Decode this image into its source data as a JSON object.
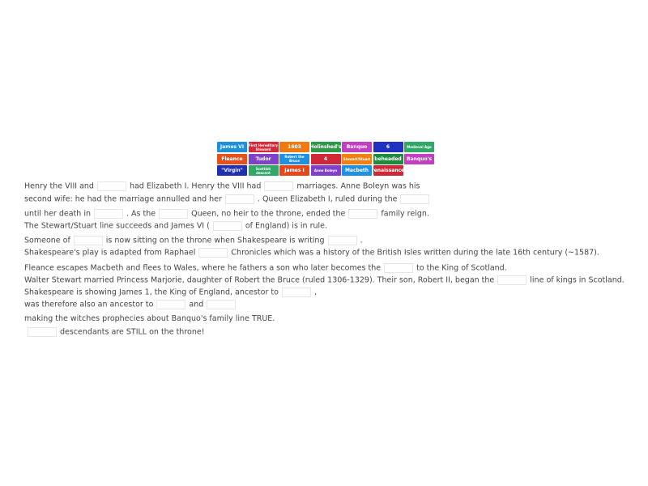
{
  "word_bank": [
    {
      "label": "James VI",
      "color": "#1e8fd8"
    },
    {
      "label": "First Hereditary Steward",
      "color": "#d42a3a",
      "small": true
    },
    {
      "label": "1603",
      "color": "#f07a10"
    },
    {
      "label": "Holinshed's",
      "color": "#2a9a48"
    },
    {
      "label": "Banquo",
      "color": "#c040c0"
    },
    {
      "label": "6",
      "color": "#2030c0"
    },
    {
      "label": "Medieval Age",
      "color": "#30a868",
      "small": true
    },
    {
      "label": "Fleance",
      "color": "#e8501a"
    },
    {
      "label": "Tudor",
      "color": "#8040c8"
    },
    {
      "label": "Robert the Bruce",
      "color": "#2090e0",
      "small": true
    },
    {
      "label": "4",
      "color": "#d02838"
    },
    {
      "label": "Stewart/Stuart",
      "color": "#f08010",
      "small": true
    },
    {
      "label": "beheaded",
      "color": "#208a40"
    },
    {
      "label": "Banquo's",
      "color": "#c040c0"
    },
    {
      "label": "\"Virgin\"",
      "color": "#2030b0"
    },
    {
      "label": "Scottish descent",
      "color": "#30a868",
      "small": true
    },
    {
      "label": "James I",
      "color": "#e84818"
    },
    {
      "label": "Anne Boleyn",
      "color": "#8040c8",
      "small": true
    },
    {
      "label": "Macbeth",
      "color": "#2090e0"
    },
    {
      "label": "renaissance",
      "color": "#d02838"
    }
  ],
  "lines": [
    [
      "Henry the VIII and",
      null,
      "had Elizabeth I. Henry the VIII had",
      null,
      "marriages. Anne Boleyn was his"
    ],
    [
      "second wife: he had the marriage annulled and her",
      null,
      ". Queen Elizabeth I, ruled during the",
      null
    ],
    [
      "until her death in",
      null,
      ". As the",
      null,
      "Queen, no heir to the throne, ended the",
      null,
      "family reign."
    ],
    [
      "The Stewart/Stuart line succeeds and James VI (",
      null,
      "of England) is in rule."
    ],
    [
      "Someone of",
      null,
      "is now sitting on the throne when Shakespeare is writing",
      null,
      "."
    ],
    [
      "Shakespeare's play is adapted from Raphael",
      null,
      "Chronicles which was a history of the British Isles written during the late 16th century (~1587)."
    ],
    [
      "Fleance escapes Macbeth and flees to Wales, where he fathers a son who later becomes the",
      null,
      "to the King of Scotland."
    ],
    [
      "Walter Stewart married Princess Marjorie, daughter of Robert the Bruce (ruled 1306-1329). Their son, Robert II, began the",
      null,
      "line of kings in Scotland."
    ],
    [
      "Shakespeare is showing James 1, the King of England, ancestor to",
      null,
      ","
    ],
    [
      "was therefore also an ancestor to",
      null,
      "and",
      null
    ],
    [
      "making the witches prophecies about Banquo's family line TRUE."
    ],
    [
      null,
      "descendants are STILL on the throne!"
    ]
  ]
}
